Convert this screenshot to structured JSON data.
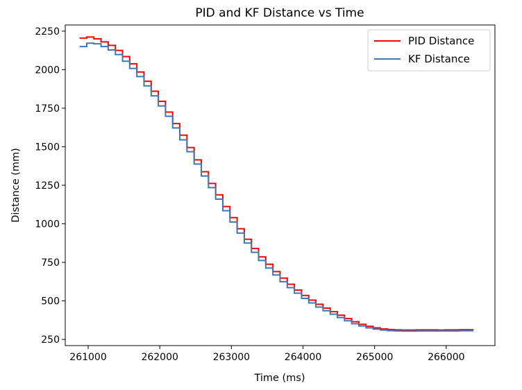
{
  "chart_data": {
    "type": "line",
    "title": "PID and KF Distance vs Time",
    "xlabel": "Time (ms)",
    "ylabel": "Distance (mm)",
    "xlim": [
      260680,
      266680
    ],
    "ylim": [
      210,
      2290
    ],
    "xticks": [
      261000,
      262000,
      263000,
      264000,
      265000,
      266000
    ],
    "yticks": [
      250,
      500,
      750,
      1000,
      1250,
      1500,
      1750,
      2000,
      2250
    ],
    "grid": false,
    "legend": {
      "position": "top-right"
    },
    "series": [
      {
        "name": "PID Distance",
        "color": "#ff0000",
        "step": true,
        "x": [
          260880,
          260980,
          261080,
          261180,
          261280,
          261380,
          261480,
          261580,
          261680,
          261780,
          261880,
          261980,
          262080,
          262180,
          262280,
          262380,
          262480,
          262580,
          262680,
          262780,
          262880,
          262980,
          263080,
          263180,
          263280,
          263380,
          263480,
          263580,
          263680,
          263780,
          263880,
          263980,
          264080,
          264180,
          264280,
          264380,
          264480,
          264580,
          264680,
          264780,
          264880,
          264980,
          265080,
          265180,
          265280,
          265380,
          265480,
          265580,
          265680,
          265780,
          265880,
          265980,
          266080,
          266180,
          266280,
          266380
        ],
        "values": [
          2205,
          2212,
          2200,
          2180,
          2158,
          2125,
          2085,
          2038,
          1985,
          1925,
          1860,
          1795,
          1725,
          1650,
          1575,
          1495,
          1415,
          1338,
          1262,
          1188,
          1112,
          1040,
          968,
          900,
          840,
          785,
          738,
          690,
          648,
          608,
          570,
          535,
          505,
          478,
          453,
          430,
          407,
          385,
          365,
          348,
          335,
          325,
          318,
          314,
          312,
          311,
          311,
          312,
          312,
          312,
          311,
          312,
          312,
          313,
          313,
          313
        ]
      },
      {
        "name": "KF Distance",
        "color": "#3d78b4",
        "step": true,
        "x": [
          260880,
          260980,
          261080,
          261180,
          261280,
          261380,
          261480,
          261580,
          261680,
          261780,
          261880,
          261980,
          262080,
          262180,
          262280,
          262380,
          262480,
          262580,
          262680,
          262780,
          262880,
          262980,
          263080,
          263180,
          263280,
          263380,
          263480,
          263580,
          263680,
          263780,
          263880,
          263980,
          264080,
          264180,
          264280,
          264380,
          264480,
          264580,
          264680,
          264780,
          264880,
          264980,
          265080,
          265180,
          265280,
          265380,
          265480,
          265580,
          265680,
          265780,
          265880,
          265980,
          266080,
          266180,
          266280,
          266380
        ],
        "values": [
          2150,
          2172,
          2168,
          2150,
          2128,
          2098,
          2055,
          2008,
          1955,
          1895,
          1830,
          1765,
          1698,
          1622,
          1545,
          1468,
          1388,
          1310,
          1235,
          1160,
          1085,
          1012,
          940,
          875,
          815,
          762,
          713,
          668,
          625,
          586,
          550,
          516,
          487,
          460,
          436,
          414,
          392,
          371,
          352,
          337,
          325,
          317,
          311,
          307,
          305,
          304,
          304,
          305,
          305,
          305,
          305,
          305,
          305,
          306,
          306,
          306
        ]
      }
    ]
  }
}
